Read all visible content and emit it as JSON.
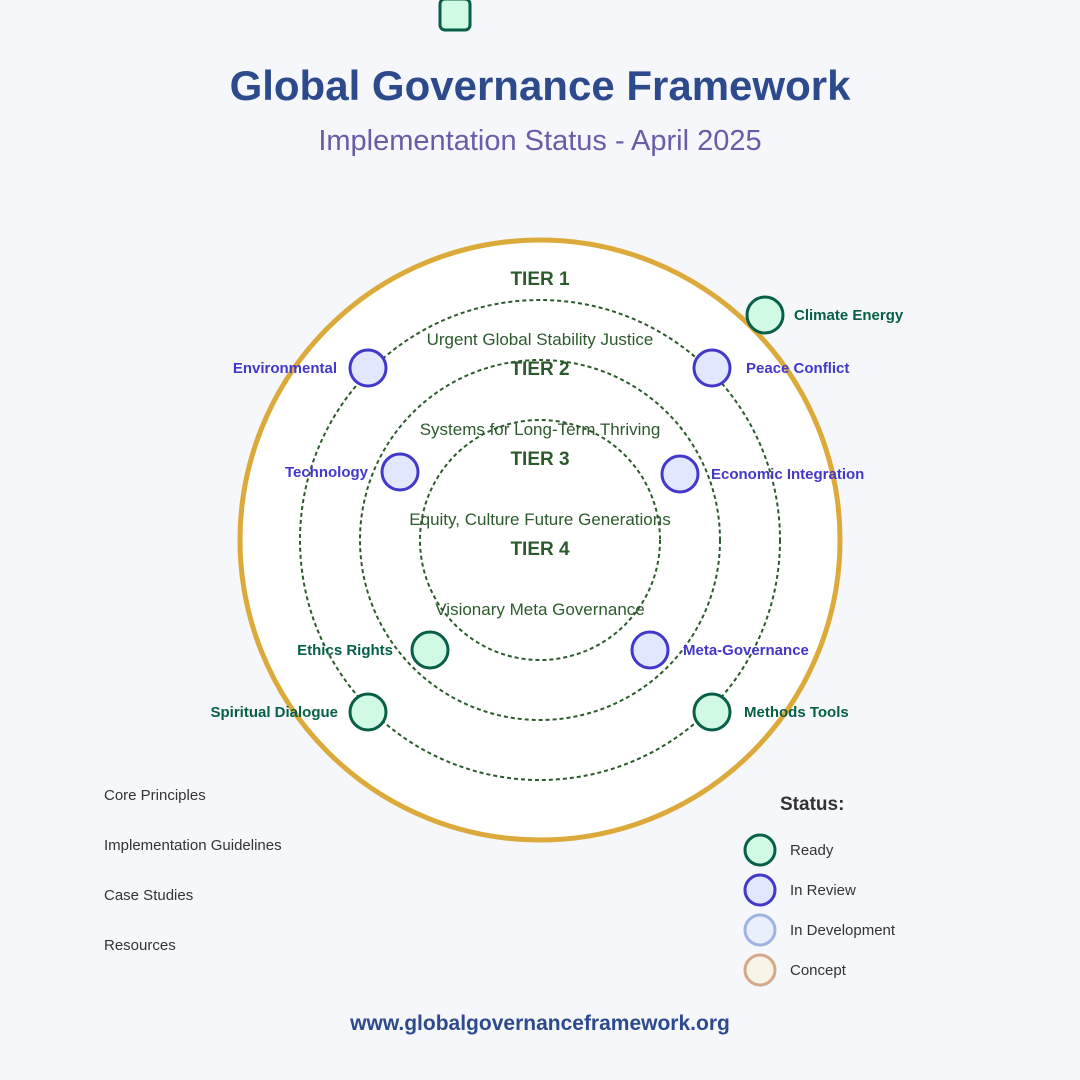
{
  "header": {
    "title": "Global Governance Framework",
    "subtitle": "Implementation Status - April 2025"
  },
  "tiers": [
    {
      "label": "TIER 1",
      "description": "Urgent Global Stability Justice"
    },
    {
      "label": "TIER 2",
      "description": "Systems for Long-Term Thriving"
    },
    {
      "label": "TIER 3",
      "description": "Equity, Culture Future Generations"
    },
    {
      "label": "TIER 4",
      "description": "Visionary Meta Governance"
    }
  ],
  "nodes": [
    {
      "id": "climate-energy",
      "label": "Climate Energy",
      "status": "ready"
    },
    {
      "id": "environmental",
      "label": "Environmental",
      "status": "review"
    },
    {
      "id": "peace-conflict",
      "label": "Peace Conflict",
      "status": "review"
    },
    {
      "id": "technology",
      "label": "Technology",
      "status": "review"
    },
    {
      "id": "economic-integration",
      "label": "Economic Integration",
      "status": "review"
    },
    {
      "id": "ethics-rights",
      "label": "Ethics Rights",
      "status": "ready"
    },
    {
      "id": "meta-governance",
      "label": "Meta-Governance",
      "status": "review"
    },
    {
      "id": "spiritual-dialogue",
      "label": "Spiritual Dialogue",
      "status": "ready"
    },
    {
      "id": "methods-tools",
      "label": "Methods Tools",
      "status": "ready"
    }
  ],
  "links": [
    {
      "label": "Core Principles"
    },
    {
      "label": "Implementation Guidelines"
    },
    {
      "label": "Case Studies"
    },
    {
      "label": "Resources"
    }
  ],
  "legend": {
    "heading": "Status:",
    "items": [
      {
        "key": "ready",
        "label": "Ready"
      },
      {
        "key": "review",
        "label": "In Review"
      },
      {
        "key": "development",
        "label": "In Development"
      },
      {
        "key": "concept",
        "label": "Concept"
      }
    ]
  },
  "colors": {
    "ready": {
      "fill": "#d1fae5",
      "stroke": "#065f46",
      "text": "#065f46"
    },
    "review": {
      "fill": "#e0e7ff",
      "stroke": "#4338ca",
      "text": "#4338ca"
    },
    "development": {
      "fill": "#eaf0fb",
      "stroke": "#9fb3e3",
      "text": "#6b7fbf"
    },
    "concept": {
      "fill": "#f7f3e6",
      "stroke": "#d4a98a",
      "text": "#a0785a"
    },
    "outer_ring": "#dbaa3a",
    "tier_ring": "#2d5a2d"
  },
  "footer": {
    "url": "www.globalgovernanceframework.org"
  }
}
